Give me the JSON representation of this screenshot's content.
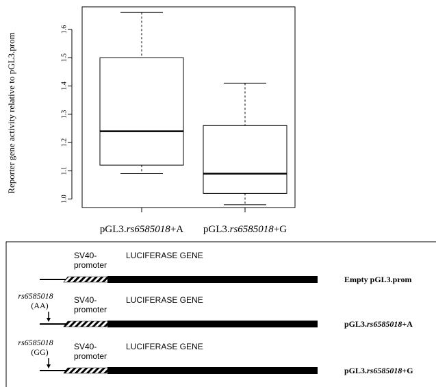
{
  "chart_data": {
    "type": "boxplot",
    "ylabel": "Reporter gene activity relative to pGL3.prom",
    "ylim": [
      0.97,
      1.68
    ],
    "yticks": [
      1.0,
      1.1,
      1.2,
      1.3,
      1.4,
      1.5,
      1.6
    ],
    "ytick_labels": [
      "1.0",
      "1.1",
      "1.2",
      "1.3",
      "1.4",
      "1.5",
      "1.6"
    ],
    "grid": false,
    "series": [
      {
        "label_prefix": "pGL3.",
        "label_snp": "rs6585018",
        "label_suffix": "+A",
        "whisker_low": 1.09,
        "q1": 1.12,
        "median": 1.24,
        "q3": 1.5,
        "whisker_high": 1.66
      },
      {
        "label_prefix": "pGL3.",
        "label_snp": "rs6585018",
        "label_suffix": "+G",
        "whisker_low": 0.98,
        "q1": 1.02,
        "median": 1.09,
        "q3": 1.26,
        "whisker_high": 1.41
      }
    ]
  },
  "constructs": [
    {
      "snp_label": "",
      "genotype": "",
      "promoter_line1": "SV40-",
      "promoter_line2": "promoter",
      "gene_label": "LUCIFERASE GENE",
      "name_prefix": "Empty pGL3.prom",
      "name_snp": "",
      "name_suffix": ""
    },
    {
      "snp_label": "rs6585018",
      "genotype": "(AA)",
      "promoter_line1": "SV40-",
      "promoter_line2": "promoter",
      "gene_label": "LUCIFERASE GENE",
      "name_prefix": "pGL3.",
      "name_snp": "rs6585018",
      "name_suffix": "+A"
    },
    {
      "snp_label": "rs6585018",
      "genotype": "(GG)",
      "promoter_line1": "SV40-",
      "promoter_line2": "promoter",
      "gene_label": "LUCIFERASE GENE",
      "name_prefix": "pGL3.",
      "name_snp": "rs6585018",
      "name_suffix": "+G"
    }
  ]
}
